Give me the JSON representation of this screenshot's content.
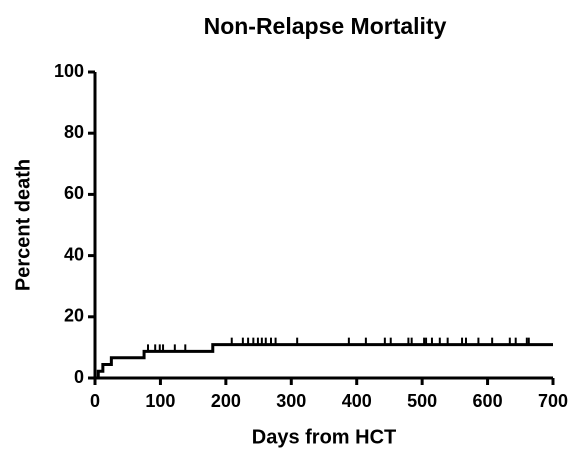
{
  "chart_data": {
    "type": "line",
    "title": "Non-Relapse Mortality",
    "xlabel": "Days from HCT",
    "ylabel": "Percent death",
    "x": [
      0,
      5,
      5,
      12,
      12,
      25,
      25,
      75,
      75,
      180,
      180,
      700
    ],
    "series": [
      {
        "color": "#000000",
        "values": [
          0,
          0,
          2.2,
          2.2,
          4.4,
          4.4,
          6.6,
          6.6,
          8.7,
          8.7,
          10.9,
          10.9
        ]
      }
    ],
    "censor_marks": {
      "x": [
        81,
        92,
        99,
        104,
        122,
        138,
        209,
        226,
        234,
        242,
        249,
        255,
        261,
        269,
        276,
        309,
        388,
        414,
        443,
        452,
        479,
        484,
        503,
        506,
        515,
        527,
        539,
        561,
        567,
        586,
        607,
        634,
        643,
        660,
        663
      ],
      "values": [
        8.7,
        8.7,
        8.7,
        8.7,
        8.7,
        8.7,
        10.9,
        10.9,
        10.9,
        10.9,
        10.9,
        10.9,
        10.9,
        10.9,
        10.9,
        10.9,
        10.9,
        10.9,
        10.9,
        10.9,
        10.9,
        10.9,
        10.9,
        10.9,
        10.9,
        10.9,
        10.9,
        10.9,
        10.9,
        10.9,
        10.9,
        10.9,
        10.9,
        10.9,
        10.9
      ]
    },
    "xlim": [
      0,
      700
    ],
    "xticks": [
      0,
      100,
      200,
      300,
      400,
      500,
      600,
      700
    ],
    "ylim": [
      0,
      100
    ],
    "yticks": [
      0,
      20,
      40,
      60,
      80,
      100
    ],
    "grid": false
  }
}
